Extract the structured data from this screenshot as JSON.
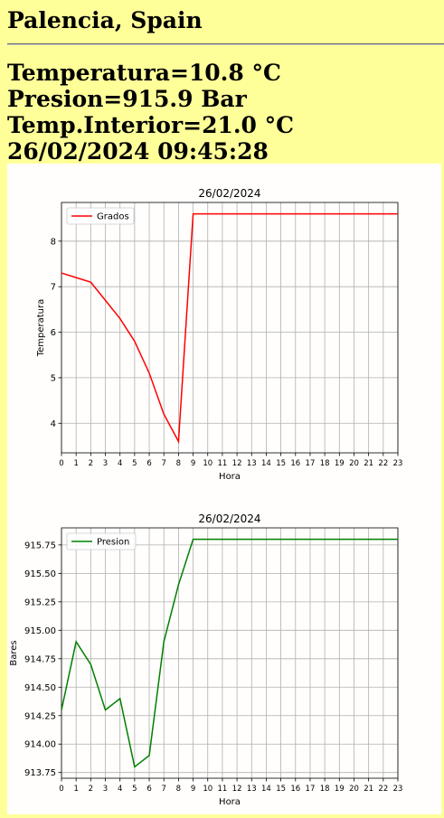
{
  "header": {
    "location": "Palencia, Spain",
    "temperature": "Temperatura=10.8 °C",
    "pressure": "Presion=915.9 Bar",
    "indoor_temperature": "Temp.Interior=21.0 °C",
    "timestamp": "26/02/2024 09:45:28"
  },
  "chart_data": [
    {
      "type": "line",
      "title": "26/02/2024",
      "xlabel": "Hora",
      "ylabel": "Temperatura",
      "x": [
        0,
        1,
        2,
        3,
        4,
        5,
        6,
        7,
        8,
        9,
        10,
        11,
        12,
        13,
        14,
        15,
        16,
        17,
        18,
        19,
        20,
        21,
        22,
        23
      ],
      "xticks": [
        0,
        1,
        2,
        3,
        4,
        5,
        6,
        7,
        8,
        9,
        10,
        11,
        12,
        13,
        14,
        15,
        16,
        17,
        18,
        19,
        20,
        21,
        22,
        23
      ],
      "xlim": [
        0,
        23
      ],
      "yticks": [
        4,
        5,
        6,
        7,
        8
      ],
      "ylim": [
        3.35,
        8.85
      ],
      "grid": true,
      "legend": "upper-left",
      "series": [
        {
          "name": "Grados",
          "color": "#ff0000",
          "values": [
            7.3,
            7.2,
            7.1,
            6.7,
            6.3,
            5.8,
            5.1,
            4.2,
            3.6,
            8.6,
            8.6,
            8.6,
            8.6,
            8.6,
            8.6,
            8.6,
            8.6,
            8.6,
            8.6,
            8.6,
            8.6,
            8.6,
            8.6,
            8.6
          ]
        }
      ]
    },
    {
      "type": "line",
      "title": "26/02/2024",
      "xlabel": "Hora",
      "ylabel": "Bares",
      "x": [
        0,
        1,
        2,
        3,
        4,
        5,
        6,
        7,
        8,
        9,
        10,
        11,
        12,
        13,
        14,
        15,
        16,
        17,
        18,
        19,
        20,
        21,
        22,
        23
      ],
      "xticks": [
        0,
        1,
        2,
        3,
        4,
        5,
        6,
        7,
        8,
        9,
        10,
        11,
        12,
        13,
        14,
        15,
        16,
        17,
        18,
        19,
        20,
        21,
        22,
        23
      ],
      "xlim": [
        0,
        23
      ],
      "yticks": [
        "913.75",
        "914.00",
        "914.25",
        "914.50",
        "914.75",
        "915.00",
        "915.25",
        "915.50",
        "915.75"
      ],
      "ylim": [
        913.7,
        915.9
      ],
      "grid": true,
      "legend": "upper-left",
      "series": [
        {
          "name": "Presion",
          "color": "#008000",
          "values": [
            914.3,
            914.9,
            914.7,
            914.3,
            914.4,
            913.8,
            913.9,
            914.9,
            915.4,
            915.8,
            915.8,
            915.8,
            915.8,
            915.8,
            915.8,
            915.8,
            915.8,
            915.8,
            915.8,
            915.8,
            915.8,
            915.8,
            915.8,
            915.8
          ]
        }
      ]
    }
  ]
}
